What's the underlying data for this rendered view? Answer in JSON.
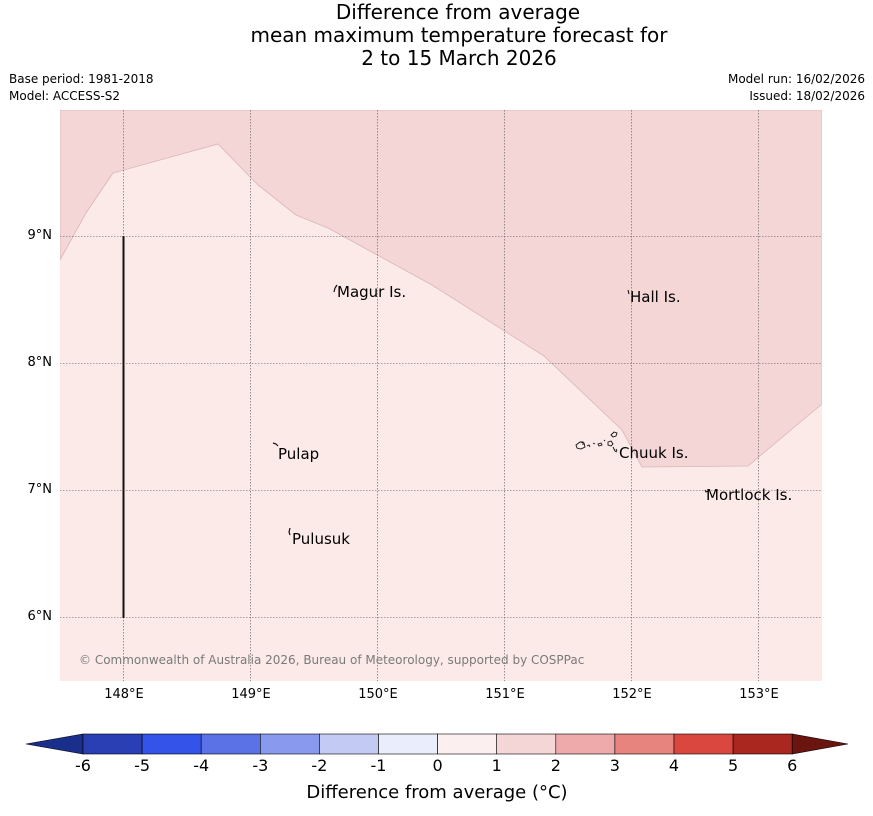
{
  "title": {
    "line1": "Difference from average",
    "line2": "mean maximum temperature forecast for",
    "line3": "2 to 15 March 2026"
  },
  "meta": {
    "base_period": "Base period: 1981-2018",
    "model": "Model: ACCESS-S2",
    "model_run": "Model run: 16/02/2026",
    "issued": "Issued: 18/02/2026"
  },
  "map": {
    "lat_ticks": [
      "9°N",
      "8°N",
      "7°N",
      "6°N"
    ],
    "lon_ticks": [
      "148°E",
      "149°E",
      "150°E",
      "151°E",
      "152°E",
      "153°E"
    ],
    "places": {
      "magur": "Magur Is.",
      "hall": "Hall Is.",
      "pulap": "Pulap",
      "chuuk": "Chuuk Is.",
      "mortlock": "Mortlock Is.",
      "pulusuk": "Pulusuk"
    },
    "credit": "© Commonwealth of Australia 2026, Bureau of Meteorology, supported by COSPPac",
    "fill_colors": {
      "category_0_to_1": "#fbeae8",
      "category_1_to_2": "#f4d6d6"
    }
  },
  "colorbar": {
    "labels": [
      "-6",
      "-5",
      "-4",
      "-3",
      "-2",
      "-1",
      "0",
      "1",
      "2",
      "3",
      "4",
      "5",
      "6"
    ],
    "colors": [
      "#1a2e8c",
      "#2a3fb3",
      "#3453e8",
      "#5a72e6",
      "#8899ee",
      "#c3caf3",
      "#eaedfb",
      "#fcefef",
      "#f4d6d6",
      "#eeaaaa",
      "#e8847e",
      "#d9473f",
      "#a9271f",
      "#6b1510"
    ],
    "title": "Difference from average (°C)"
  }
}
